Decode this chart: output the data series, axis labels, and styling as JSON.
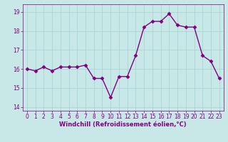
{
  "x": [
    0,
    1,
    2,
    3,
    4,
    5,
    6,
    7,
    8,
    9,
    10,
    11,
    12,
    13,
    14,
    15,
    16,
    17,
    18,
    19,
    20,
    21,
    22,
    23
  ],
  "y": [
    16.0,
    15.9,
    16.1,
    15.9,
    16.1,
    16.1,
    16.1,
    16.2,
    15.5,
    15.5,
    14.5,
    15.6,
    15.6,
    16.7,
    18.2,
    18.5,
    18.5,
    18.9,
    18.3,
    18.2,
    18.2,
    16.7,
    16.4,
    15.5
  ],
  "line_color": "#800080",
  "marker": "D",
  "marker_size": 2.5,
  "bg_color": "#c8e8e8",
  "grid_color": "#b0d8d8",
  "xlabel": "Windchill (Refroidissement éolien,°C)",
  "ylim": [
    13.8,
    19.4
  ],
  "xlim": [
    -0.5,
    23.5
  ],
  "yticks": [
    14,
    15,
    16,
    17,
    18,
    19
  ],
  "xticks": [
    0,
    1,
    2,
    3,
    4,
    5,
    6,
    7,
    8,
    9,
    10,
    11,
    12,
    13,
    14,
    15,
    16,
    17,
    18,
    19,
    20,
    21,
    22,
    23
  ],
  "tick_color": "#800080",
  "label_color": "#800080",
  "linewidth": 1.0,
  "tick_fontsize": 5.5,
  "label_fontsize": 6.0
}
